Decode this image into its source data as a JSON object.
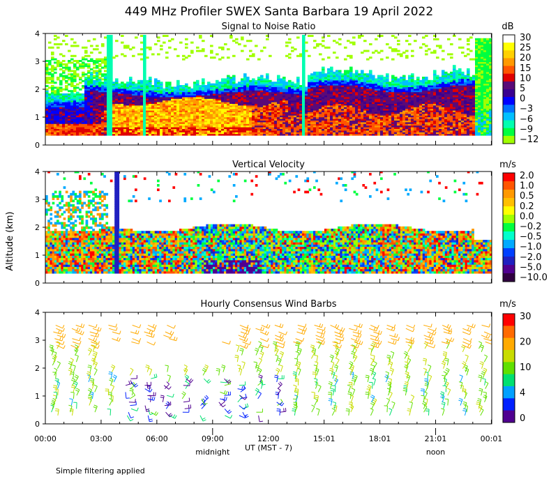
{
  "figure": {
    "title": "449 MHz Profiler SWEX Santa Barbara 19 April 2022",
    "ylabel": "Altitude (km)",
    "xlabel": "UT  (MST - 7)",
    "footnote": "Simple filtering applied",
    "time_ticks": [
      "00:00",
      "03:00",
      "06:00",
      "09:00",
      "12:00",
      "15:01",
      "18:01",
      "21:01",
      "00:01"
    ],
    "local_markers": [
      {
        "label": "midnight",
        "hour": 9
      },
      {
        "label": "noon",
        "hour": 21
      }
    ]
  },
  "chart_data": [
    {
      "type": "heatmap",
      "title": "Signal to Noise Ratio",
      "unit": "dB",
      "ylim": [
        0,
        4
      ],
      "yticks": [
        "0",
        "1",
        "2",
        "3",
        "4"
      ],
      "colorbar": {
        "labels": [
          "30",
          "25",
          "20",
          "15",
          "10",
          "5",
          "0",
          "−3",
          "−6",
          "−9",
          "−12"
        ],
        "colors": [
          "#ffffff",
          "#ffff00",
          "#ffd000",
          "#ff9900",
          "#ff5500",
          "#e00000",
          "#5a0a78",
          "#3a0090",
          "#0000ff",
          "#0070ff",
          "#00c0ff",
          "#00ffb0",
          "#00ff40",
          "#a0ff00"
        ]
      }
    },
    {
      "type": "heatmap",
      "title": "Vertical Velocity",
      "unit": "m/s",
      "ylim": [
        0,
        4
      ],
      "yticks": [
        "0",
        "1",
        "2",
        "3",
        "4"
      ],
      "colorbar": {
        "labels": [
          "2.0",
          "1.0",
          "0.5",
          "0.2",
          "0.0",
          "−0.2",
          "−0.5",
          "−1.0",
          "−2.0",
          "−5.0",
          "−10.0"
        ],
        "colors": [
          "#ff0000",
          "#ff5500",
          "#ff9900",
          "#ffc000",
          "#ffff00",
          "#a0ff00",
          "#00ff40",
          "#00ffcc",
          "#00aaff",
          "#0040ff",
          "#2020c0",
          "#500090",
          "#300040"
        ]
      }
    },
    {
      "type": "scatter",
      "title": "Hourly Consensus Wind Barbs",
      "unit": "m/s",
      "ylim": [
        0,
        4
      ],
      "yticks": [
        "0",
        "1",
        "2",
        "3",
        "4"
      ],
      "colorbar": {
        "labels": [
          "30",
          "20",
          "10",
          "4",
          "0"
        ],
        "colors": [
          "#ff0000",
          "#ff6a00",
          "#ffaa00",
          "#c8dc00",
          "#60e000",
          "#00e070",
          "#00a0ff",
          "#0020ff",
          "#500090"
        ]
      }
    }
  ]
}
